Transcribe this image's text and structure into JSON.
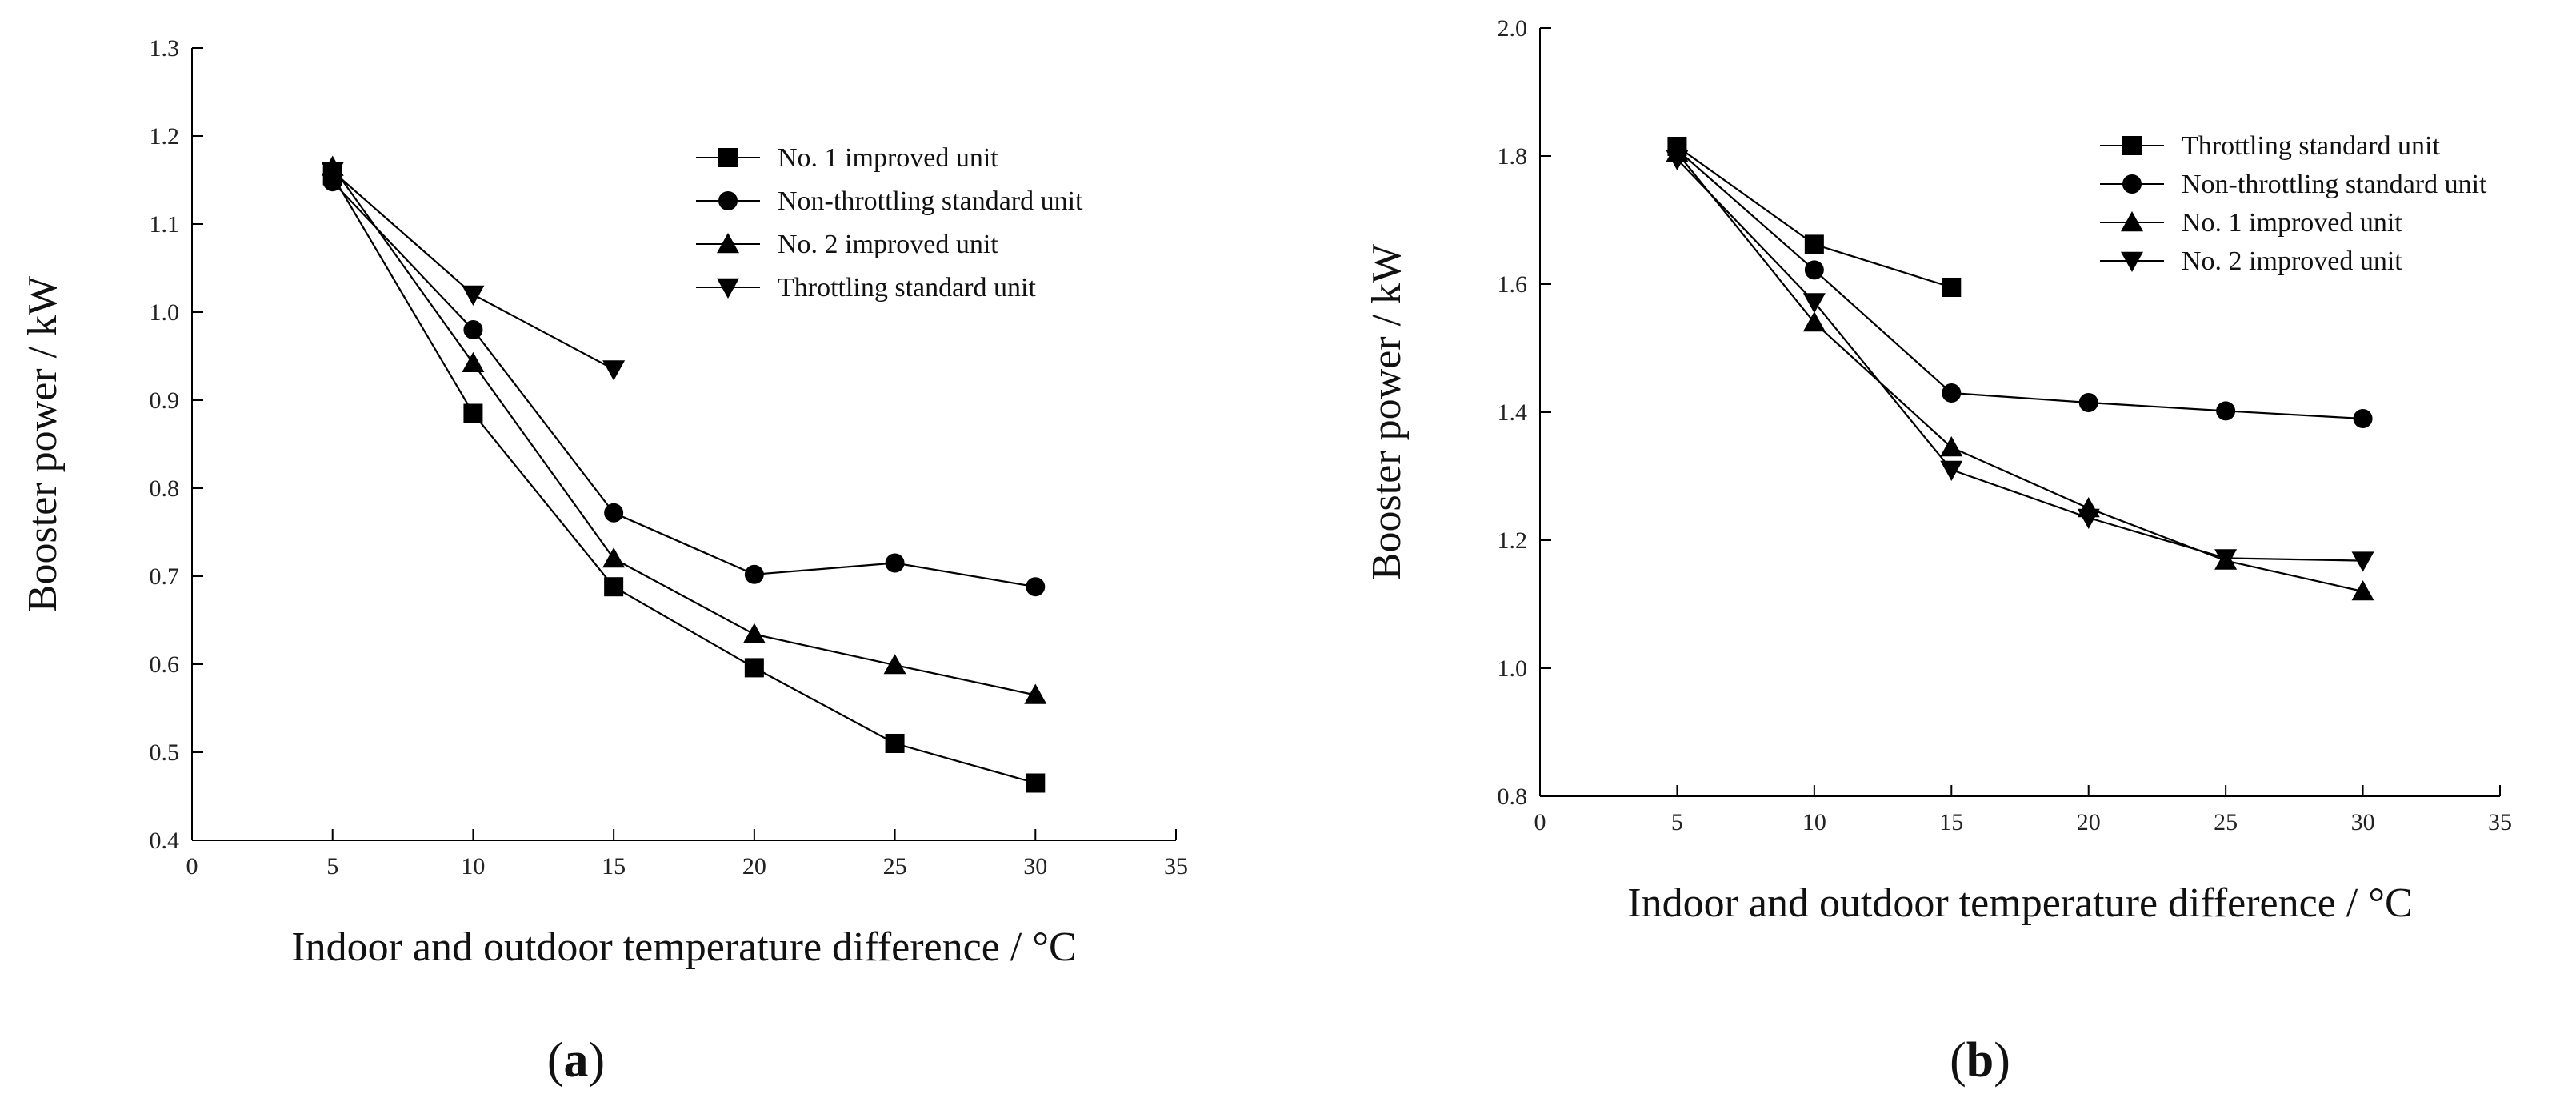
{
  "chart_data": [
    {
      "type": "line",
      "panel_label": {
        "open": "(",
        "letter": "a",
        "close": ")"
      },
      "xlabel": "Indoor and outdoor temperature difference / °C",
      "ylabel": "Booster power / kW",
      "xlim": [
        0,
        35
      ],
      "ylim": [
        0.4,
        1.3
      ],
      "x_ticks": [
        0,
        5,
        10,
        15,
        20,
        25,
        30,
        35
      ],
      "y_ticks": [
        0.4,
        0.5,
        0.6,
        0.7,
        0.8,
        0.9,
        1.0,
        1.1,
        1.2,
        1.3
      ],
      "x_tick_labels": [
        "0",
        "5",
        "10",
        "15",
        "20",
        "25",
        "30",
        "35"
      ],
      "y_tick_labels": [
        "0.4",
        "0.5",
        "0.6",
        "0.7",
        "0.8",
        "0.9",
        "1.0",
        "1.1",
        "1.2",
        "1.3"
      ],
      "grid": false,
      "legend_position": "top-right",
      "series": [
        {
          "name": "No. 1 improved unit",
          "marker": "square",
          "x": [
            5,
            10,
            15,
            20,
            25,
            30
          ],
          "values": [
            1.155,
            0.885,
            0.688,
            0.596,
            0.51,
            0.465
          ]
        },
        {
          "name": "Non-throttling standard unit",
          "marker": "circle",
          "x": [
            5,
            10,
            15,
            20,
            25,
            30
          ],
          "values": [
            1.148,
            0.98,
            0.772,
            0.702,
            0.715,
            0.688
          ]
        },
        {
          "name": "No. 2 improved unit",
          "marker": "triangle-up",
          "x": [
            5,
            10,
            15,
            20,
            25,
            30
          ],
          "values": [
            1.165,
            0.942,
            0.72,
            0.634,
            0.599,
            0.565
          ]
        },
        {
          "name": "Throttling standard unit",
          "marker": "triangle-down",
          "x": [
            5,
            10,
            15
          ],
          "values": [
            1.16,
            1.02,
            0.935
          ]
        }
      ]
    },
    {
      "type": "line",
      "panel_label": {
        "open": "(",
        "letter": "b",
        "close": ")"
      },
      "xlabel": "Indoor and outdoor temperature difference / °C",
      "ylabel": "Booster power / kW",
      "xlim": [
        0,
        35
      ],
      "ylim": [
        0.8,
        2.0
      ],
      "x_ticks": [
        0,
        5,
        10,
        15,
        20,
        25,
        30,
        35
      ],
      "y_ticks": [
        0.8,
        1.0,
        1.2,
        1.4,
        1.6,
        1.8,
        2.0
      ],
      "x_tick_labels": [
        "0",
        "5",
        "10",
        "15",
        "20",
        "25",
        "30",
        "35"
      ],
      "y_tick_labels": [
        "0.8",
        "1.0",
        "1.2",
        "1.4",
        "1.6",
        "1.8",
        "2.0"
      ],
      "grid": false,
      "legend_position": "top-right",
      "series": [
        {
          "name": "Throttling standard unit",
          "marker": "square",
          "x": [
            5,
            10,
            15
          ],
          "values": [
            1.815,
            1.662,
            1.595
          ]
        },
        {
          "name": "Non-throttling standard unit",
          "marker": "circle",
          "x": [
            5,
            10,
            15,
            20,
            25,
            30
          ],
          "values": [
            1.81,
            1.622,
            1.43,
            1.415,
            1.402,
            1.39
          ]
        },
        {
          "name": "No. 1 improved unit",
          "marker": "triangle-up",
          "x": [
            5,
            10,
            15,
            20,
            25,
            30
          ],
          "values": [
            1.805,
            1.54,
            1.345,
            1.25,
            1.168,
            1.12
          ]
        },
        {
          "name": "No. 2 improved unit",
          "marker": "triangle-down",
          "x": [
            5,
            10,
            15,
            20,
            25,
            30
          ],
          "values": [
            1.795,
            1.572,
            1.31,
            1.235,
            1.172,
            1.168
          ]
        }
      ]
    }
  ]
}
